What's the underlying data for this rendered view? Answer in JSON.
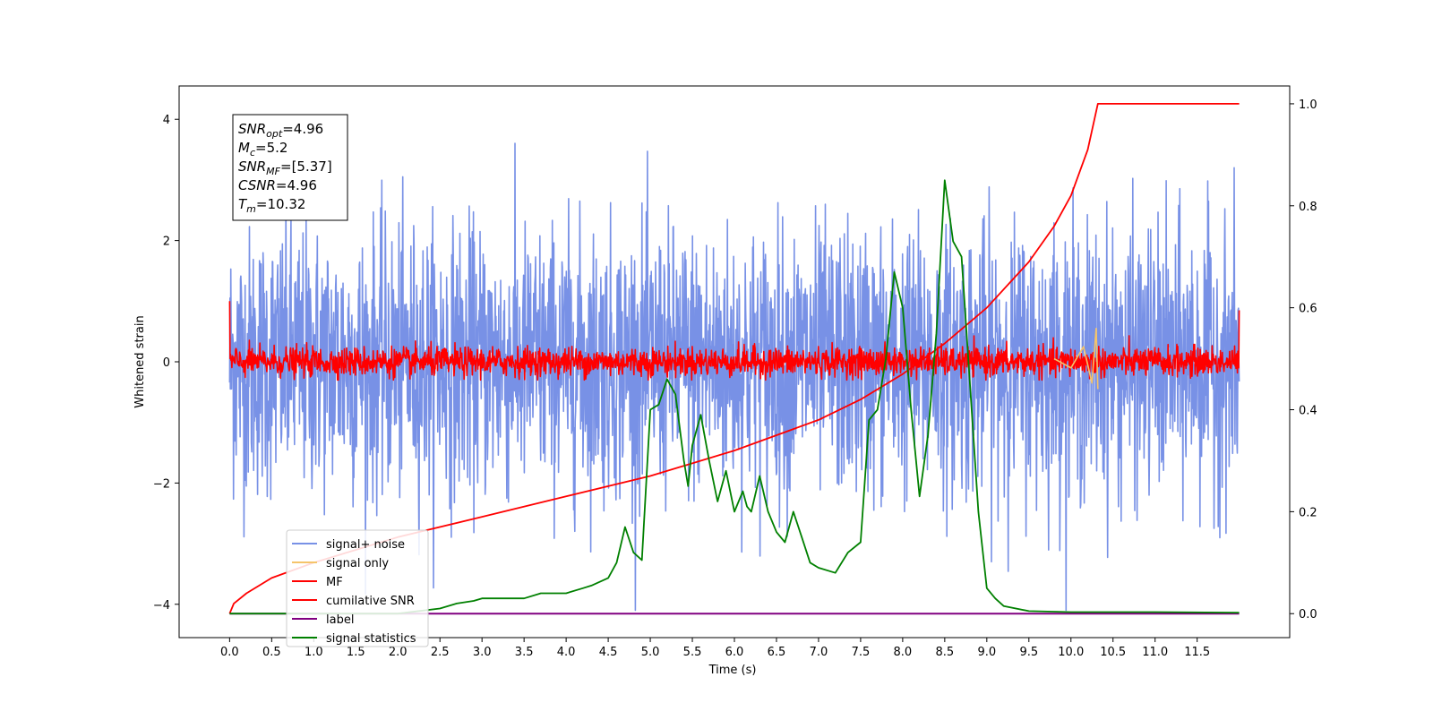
{
  "chart_data": {
    "type": "line",
    "xlabel": "Time (s)",
    "ylabel": "Whitened strain",
    "y2label": "",
    "xlim": [
      -0.6,
      12.6
    ],
    "ylim": [
      -4.55,
      4.55
    ],
    "y2lim": [
      -0.047,
      1.035
    ],
    "x_ticks": [
      "0.0",
      "0.5",
      "1.0",
      "1.5",
      "2.0",
      "2.5",
      "3.0",
      "3.5",
      "4.0",
      "4.5",
      "5.0",
      "5.5",
      "6.0",
      "6.5",
      "7.0",
      "7.5",
      "8.0",
      "8.5",
      "9.0",
      "9.5",
      "10.0",
      "10.5",
      "11.0",
      "11.5"
    ],
    "y_ticks": [
      "4",
      "2",
      "0",
      "−2",
      "−4"
    ],
    "y2_ticks": [
      "1.0",
      "0.8",
      "0.6",
      "0.4",
      "0.2",
      "0.0"
    ],
    "legend_position": "lower-left",
    "info_box": {
      "snr_opt": {
        "base": "SNR",
        "sub": "opt",
        "value": "=4.96"
      },
      "mc": {
        "base": "M",
        "sub": "c",
        "value": "=5.2"
      },
      "snr_mf": {
        "base": "SNR",
        "sub": "MF",
        "value": "=[5.37]"
      },
      "csnr": {
        "base": "CSNR",
        "sub": "",
        "value": "=4.96"
      },
      "tm": {
        "base": "T",
        "sub": "m",
        "value": "=10.32"
      }
    },
    "series": [
      {
        "name": "signal+ noise",
        "color": "#7891e6",
        "axis": "left",
        "description": "whitened strain noise, approx. gaussian with sigma ~1.1, spanning roughly -4.1 to 4.1 over t = 0 to 12",
        "sigma": 1.1,
        "x_range": [
          0,
          12
        ]
      },
      {
        "name": "signal only",
        "color": "#f5c46a",
        "axis": "left",
        "x": [
          9.8,
          10.0,
          10.15,
          10.25,
          10.3,
          10.32
        ],
        "y": [
          0.05,
          -0.1,
          0.25,
          -0.35,
          0.55,
          -0.45
        ]
      },
      {
        "name": "MF",
        "color": "#ff0000",
        "axis": "left",
        "description": "matched filter output, roughly within -0.3 to 0.65 over t = 0 to 12",
        "x_range": [
          0,
          12
        ]
      },
      {
        "name": "cumilative SNR",
        "color": "#ff0000",
        "axis": "right",
        "x": [
          0,
          0.05,
          0.2,
          0.5,
          1,
          2,
          3,
          4,
          5,
          6,
          7,
          7.5,
          8,
          8.5,
          9,
          9.5,
          9.8,
          10,
          10.2,
          10.32,
          11,
          12
        ],
        "y": [
          0.0,
          0.02,
          0.04,
          0.07,
          0.1,
          0.15,
          0.19,
          0.23,
          0.27,
          0.32,
          0.38,
          0.42,
          0.47,
          0.53,
          0.6,
          0.69,
          0.76,
          0.82,
          0.91,
          1.0,
          1.0,
          1.0
        ]
      },
      {
        "name": "label",
        "color": "#800080",
        "axis": "right",
        "x": [
          0,
          12
        ],
        "y": [
          0.0,
          0.0
        ]
      },
      {
        "name": "signal statistics",
        "color": "#008000",
        "axis": "right",
        "x": [
          0,
          0.5,
          1.0,
          1.5,
          2.0,
          2.5,
          2.7,
          2.9,
          3.0,
          3.2,
          3.5,
          3.7,
          4.0,
          4.2,
          4.3,
          4.5,
          4.6,
          4.7,
          4.8,
          4.9,
          5.0,
          5.1,
          5.2,
          5.3,
          5.4,
          5.45,
          5.5,
          5.6,
          5.7,
          5.8,
          5.9,
          6.0,
          6.1,
          6.15,
          6.2,
          6.3,
          6.4,
          6.5,
          6.6,
          6.7,
          6.8,
          6.9,
          7.0,
          7.2,
          7.35,
          7.5,
          7.6,
          7.7,
          7.8,
          7.9,
          8.0,
          8.1,
          8.2,
          8.3,
          8.4,
          8.5,
          8.6,
          8.7,
          8.8,
          8.9,
          9.0,
          9.1,
          9.2,
          9.5,
          10.0,
          10.5,
          11.0,
          12.0
        ],
        "y": [
          0.0,
          0.0,
          0.0,
          0.0,
          0.0,
          0.01,
          0.02,
          0.025,
          0.03,
          0.03,
          0.03,
          0.04,
          0.04,
          0.05,
          0.055,
          0.07,
          0.1,
          0.17,
          0.12,
          0.105,
          0.4,
          0.41,
          0.46,
          0.43,
          0.3,
          0.25,
          0.33,
          0.39,
          0.3,
          0.22,
          0.28,
          0.2,
          0.24,
          0.21,
          0.2,
          0.27,
          0.2,
          0.16,
          0.14,
          0.2,
          0.15,
          0.1,
          0.09,
          0.08,
          0.12,
          0.14,
          0.38,
          0.4,
          0.5,
          0.67,
          0.6,
          0.4,
          0.23,
          0.35,
          0.55,
          0.85,
          0.73,
          0.7,
          0.45,
          0.2,
          0.05,
          0.03,
          0.015,
          0.005,
          0.003,
          0.003,
          0.003,
          0.002
        ]
      }
    ]
  }
}
